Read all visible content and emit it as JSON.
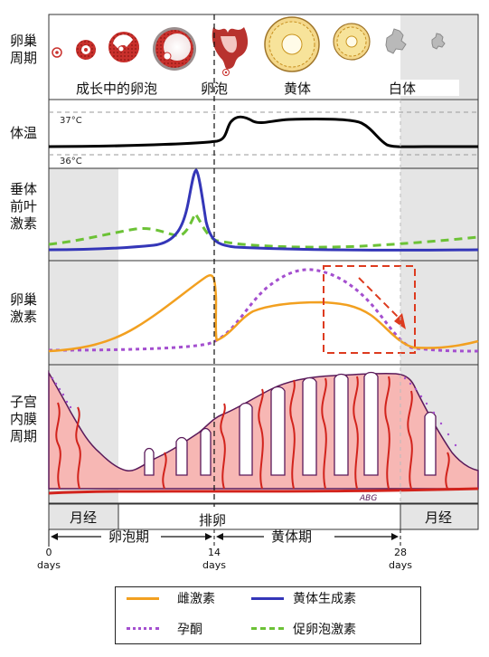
{
  "row_labels": {
    "ovarian_cycle": "卵巢\n周期",
    "body_temp": "体温",
    "pituitary": "垂体\n前叶\n激素",
    "ovarian_hormones": "卵巢\n激素",
    "endometrium": "子宫\n内膜\n周期"
  },
  "ovary": {
    "growing_follicle": "成长中的卵泡",
    "ovulation_follicle": "卵泡",
    "corpus_luteum": "黄体",
    "corpus_albicans": "白体"
  },
  "temperature": {
    "high_label": "37°C",
    "low_label": "36°C"
  },
  "phases": {
    "menses_left": "月经",
    "menses_right": "月经",
    "ovulation": "排卵",
    "follicular": "卵泡期",
    "luteal": "黄体期"
  },
  "day_ticks": [
    {
      "day": "0",
      "unit": "days"
    },
    {
      "day": "14",
      "unit": "days"
    },
    {
      "day": "28",
      "unit": "days"
    }
  ],
  "signature": "ABG",
  "legend": {
    "estrogen": "雌激素",
    "lh": "黄体生成素",
    "progesterone": "孕酮",
    "fsh": "促卵泡激素"
  },
  "colors": {
    "estrogen": "#f2a020",
    "lh": "#3436b8",
    "progesterone": "#a44fcf",
    "fsh": "#6cc236",
    "temperature": "#000000",
    "highlight_box": "#dd3b1f",
    "endometrium_fill": "#f7b7b4",
    "endometrium_outline": "#5a1a5a",
    "vessel": "#d2231c",
    "menses_shade": "#e5e5e5"
  }
}
